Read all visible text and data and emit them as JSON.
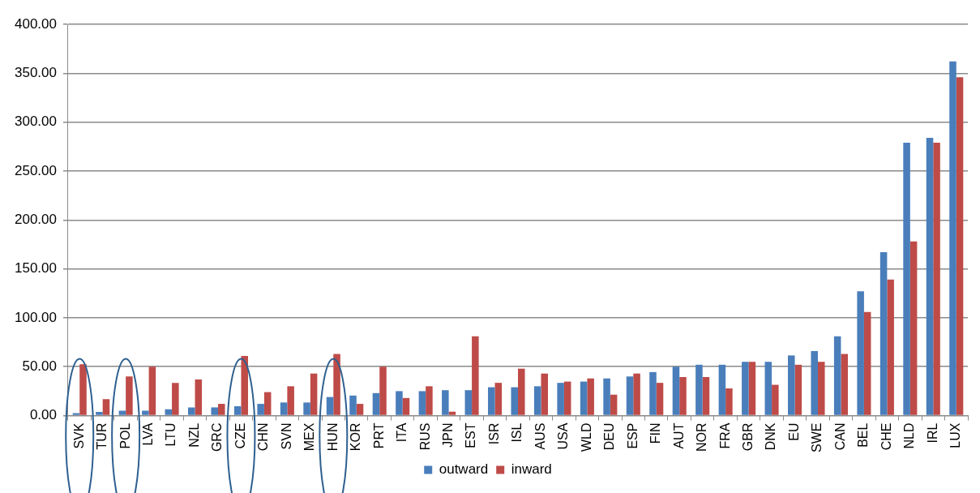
{
  "chart_data": {
    "type": "bar",
    "categories": [
      "SVK",
      "TUR",
      "POL",
      "LVA",
      "LTU",
      "NZL",
      "GRC",
      "CZE",
      "CHN",
      "SVN",
      "MEX",
      "HUN",
      "KOR",
      "PRT",
      "ITA",
      "RUS",
      "JPN",
      "EST",
      "ISR",
      "ISL",
      "AUS",
      "USA",
      "WLD",
      "DEU",
      "ESP",
      "FIN",
      "AUT",
      "NOR",
      "FRA",
      "GBR",
      "DNK",
      "EU",
      "SWE",
      "CAN",
      "BEL",
      "CHE",
      "NLD",
      "IRL",
      "LUX"
    ],
    "series": [
      {
        "name": "outward",
        "color": "#4a7ebb",
        "values": [
          2.5,
          3.7,
          5,
          5,
          6.5,
          8.4,
          8.4,
          9.6,
          12,
          13.4,
          13.4,
          19,
          20.5,
          23,
          25,
          25,
          26,
          26,
          29,
          29,
          30,
          33.5,
          34.8,
          38,
          40,
          44.5,
          50,
          52,
          52,
          55,
          55,
          61.5,
          66,
          81,
          127,
          167,
          279,
          284,
          362
        ]
      },
      {
        "name": "inward",
        "color": "#be4b48",
        "values": [
          52.5,
          16.8,
          40,
          50,
          33.5,
          37,
          12,
          61,
          24,
          30,
          43,
          63,
          12,
          50,
          18,
          30,
          4,
          81,
          33.5,
          48,
          43,
          34.8,
          38,
          21.4,
          43,
          33.5,
          39.4,
          39.4,
          27.8,
          55,
          31.5,
          52,
          55,
          63,
          106,
          139,
          178,
          279,
          346
        ]
      }
    ],
    "ylim": [
      0,
      400
    ],
    "yticks": [
      {
        "value": 0,
        "label": "0.00"
      },
      {
        "value": 50,
        "label": "50.00"
      },
      {
        "value": 100,
        "label": "100.00"
      },
      {
        "value": 150,
        "label": "150.00"
      },
      {
        "value": 200,
        "label": "200.00"
      },
      {
        "value": 250,
        "label": "250.00"
      },
      {
        "value": 300,
        "label": "300.00"
      },
      {
        "value": 350,
        "label": "350.00"
      },
      {
        "value": 400,
        "label": "400.00"
      }
    ],
    "grid": "y",
    "legend": "bottom"
  }
}
